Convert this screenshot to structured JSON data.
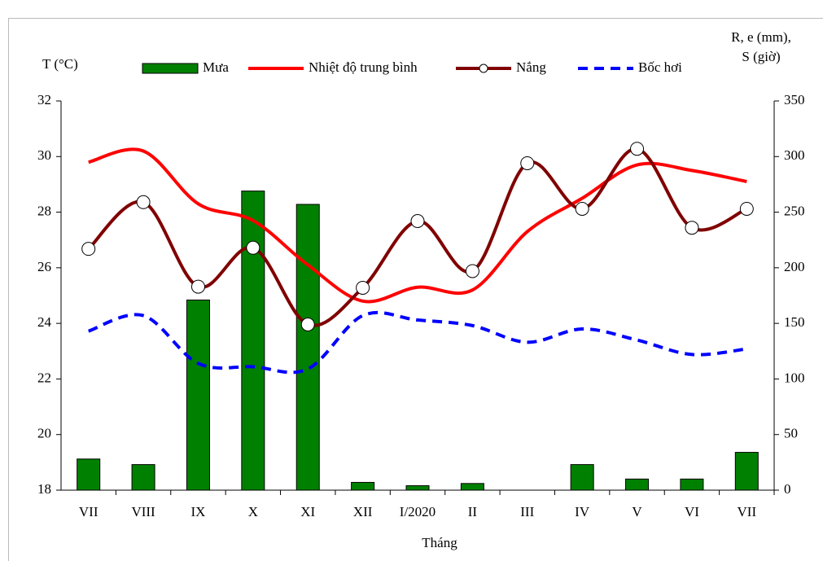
{
  "chart_data": {
    "type": "combo",
    "categories": [
      "VII",
      "VIII",
      "IX",
      "X",
      "XI",
      "XII",
      "I/2020",
      "II",
      "III",
      "IV",
      "V",
      "VI",
      "VII"
    ],
    "y_label": "T (°C)",
    "y2_label": [
      "R, e (mm),",
      "S (giờ)"
    ],
    "x_label": "Tháng",
    "ylim": [
      18,
      32
    ],
    "yticks": [
      18,
      20,
      22,
      24,
      26,
      28,
      30,
      32
    ],
    "y2lim": [
      0,
      350
    ],
    "y2ticks": [
      0,
      50,
      100,
      150,
      200,
      250,
      300,
      350
    ],
    "series": [
      {
        "name": "Mưa",
        "type": "bar",
        "axis": "y2",
        "color": "#008000",
        "values": [
          28,
          23,
          171,
          269,
          257,
          7,
          4,
          6,
          0,
          23,
          10,
          10,
          34
        ]
      },
      {
        "name": "Nhiệt độ trung bình",
        "type": "line",
        "axis": "y",
        "color": "#ff0000",
        "values": [
          29.8,
          30.2,
          28.3,
          27.7,
          26.1,
          24.8,
          25.3,
          25.2,
          27.3,
          28.5,
          29.7,
          29.5,
          29.1
        ]
      },
      {
        "name": "Nắng",
        "type": "line-marker",
        "axis": "y2",
        "color": "#800000",
        "values": [
          217,
          259,
          183,
          218,
          149,
          182,
          242,
          197,
          294,
          253,
          307,
          236,
          253
        ]
      },
      {
        "name": "Bốc hơi",
        "type": "dashed",
        "axis": "y2",
        "color": "#0000ff",
        "values": [
          143,
          157,
          114,
          111,
          109,
          157,
          153,
          148,
          133,
          145,
          135,
          122,
          127
        ]
      }
    ]
  }
}
